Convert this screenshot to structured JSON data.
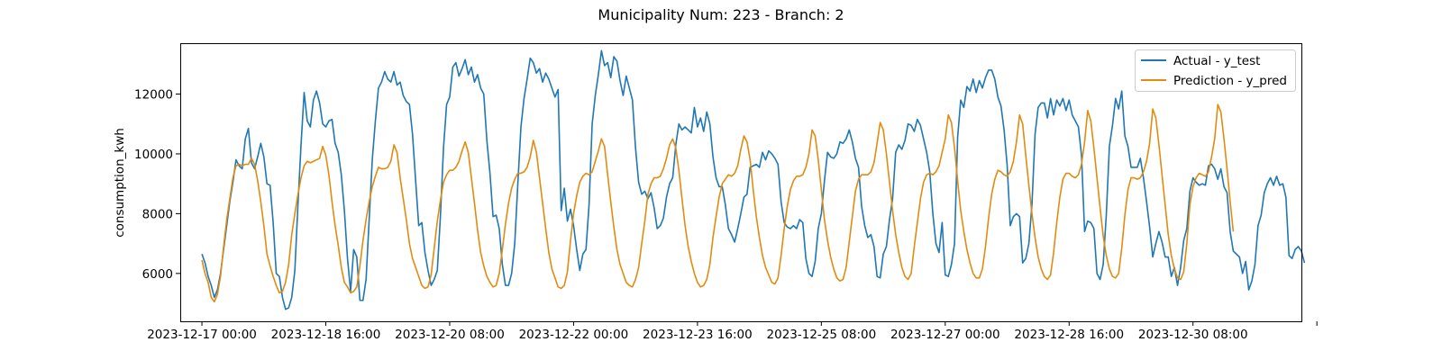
{
  "chart_data": {
    "type": "line",
    "title": "Municipality Num: 223 - Branch: 2",
    "xlabel": "",
    "ylabel": "consumption_kwh",
    "x_start": "2023-12-17 00:00",
    "x_step_hours": 1,
    "x_range_hours": [
      -7,
      355
    ],
    "x_ticks": [
      "2023-12-17 00:00",
      "2023-12-18 16:00",
      "2023-12-20 08:00",
      "2023-12-22 00:00",
      "2023-12-23 16:00",
      "2023-12-25 08:00",
      "2023-12-27 00:00",
      "2023-12-28 16:00",
      "2023-12-30 08:00",
      ""
    ],
    "ylim": [
      4400,
      13700
    ],
    "y_ticks": [
      6000,
      8000,
      10000,
      12000
    ],
    "grid": false,
    "legend_position": "top-right",
    "series": [
      {
        "name": "Actual - y_test",
        "color": "#1f77b4",
        "values": [
          6650,
          6350,
          5900,
          5600,
          5200,
          5450,
          6000,
          6800,
          7600,
          8400,
          9050,
          9800,
          9600,
          9500,
          10500,
          10850,
          9700,
          9500,
          9900,
          10350,
          9900,
          9000,
          8950,
          7700,
          6000,
          5900,
          5200,
          4800,
          4850,
          5200,
          6100,
          8300,
          10300,
          12050,
          11100,
          10900,
          11800,
          12100,
          11700,
          11000,
          10900,
          11100,
          11150,
          10350,
          10050,
          9300,
          8100,
          6500,
          5400,
          6800,
          6550,
          5100,
          5100,
          5800,
          7800,
          9800,
          11100,
          12200,
          12400,
          12750,
          12500,
          12400,
          12750,
          12300,
          12400,
          11950,
          11750,
          11650,
          10650,
          9100,
          7600,
          7700,
          6700,
          6100,
          5600,
          5800,
          6100,
          7900,
          10200,
          11650,
          11900,
          12900,
          13050,
          12600,
          12850,
          13150,
          12650,
          12900,
          12400,
          12650,
          12200,
          12000,
          10450,
          9350,
          7900,
          7950,
          7500,
          6300,
          5600,
          5600,
          6000,
          7000,
          9000,
          10900,
          11850,
          12500,
          13200,
          13050,
          12700,
          12850,
          12400,
          12700,
          12500,
          12200,
          11900,
          12150,
          8100,
          8850,
          7750,
          8150,
          7600,
          6800,
          6100,
          6650,
          6800,
          8300,
          11000,
          11950,
          12650,
          13450,
          12950,
          13050,
          12550,
          13250,
          13100,
          12450,
          11950,
          12600,
          12200,
          11800,
          10200,
          9050,
          8650,
          8750,
          8500,
          8700,
          8200,
          7500,
          7600,
          7850,
          8550,
          9000,
          9200,
          10300,
          11000,
          10800,
          10900,
          10800,
          10700,
          11550,
          10900,
          11200,
          10750,
          11400,
          11000,
          9900,
          9200,
          8900,
          8900,
          8300,
          7500,
          7300,
          7050,
          7500,
          8000,
          8550,
          8650,
          9550,
          9600,
          9650,
          9550,
          10050,
          9800,
          10100,
          10000,
          9850,
          9650,
          8400,
          7700,
          7550,
          7500,
          7600,
          7500,
          7800,
          7700,
          6500,
          6000,
          5900,
          6400,
          7500,
          8000,
          9100,
          10050,
          9900,
          9850,
          10000,
          10400,
          10350,
          10500,
          10800,
          10400,
          9850,
          9550,
          8250,
          7600,
          7200,
          7300,
          6900,
          5900,
          5850,
          6650,
          6900,
          7800,
          8500,
          10050,
          10300,
          10150,
          10450,
          11000,
          10950,
          10750,
          11150,
          10950,
          10500,
          10050,
          9400,
          8000,
          7000,
          6700,
          7700,
          5950,
          5900,
          6300,
          7000,
          10550,
          11800,
          11550,
          12250,
          12100,
          12500,
          12050,
          12450,
          12200,
          12550,
          12800,
          12800,
          12500,
          11900,
          11600,
          10800,
          9600,
          7600,
          7900,
          8000,
          7900,
          6350,
          6500,
          7000,
          8300,
          10650,
          11550,
          11700,
          11700,
          11200,
          11850,
          11300,
          11800,
          11600,
          11850,
          11450,
          11800,
          11300,
          11100,
          10900,
          9950,
          7400,
          7750,
          7700,
          7500,
          6000,
          5800,
          6300,
          7950,
          10250,
          10950,
          11850,
          11500,
          12100,
          10600,
          10250,
          9550,
          9550,
          9550,
          9850,
          9200,
          8400,
          7550,
          6550,
          7000,
          7400,
          7050,
          6550,
          6550,
          5900,
          6200,
          5600,
          6200,
          7100,
          7500,
          8750,
          9200,
          9050,
          8950,
          9000,
          8950,
          9600,
          9650,
          9500,
          9150,
          9500,
          8900,
          8700,
          7400,
          6750,
          6650,
          6550,
          6000,
          6400,
          5450,
          5750,
          6300,
          7600,
          7950,
          8700,
          9000,
          9200,
          8950,
          9250,
          8950,
          9000,
          8550,
          6600,
          6500,
          6800,
          6900,
          6750,
          6350
        ]
      },
      {
        "name": "Prediction - y_pred",
        "color": "#e08c10",
        "values": [
          6450,
          6000,
          5700,
          5200,
          5050,
          5300,
          5900,
          6900,
          7800,
          8500,
          9200,
          9600,
          9650,
          9600,
          9650,
          9650,
          9850,
          9650,
          9100,
          8400,
          7600,
          6650,
          6250,
          5900,
          5600,
          5350,
          5400,
          5700,
          6300,
          7300,
          8000,
          8650,
          9200,
          9600,
          9750,
          9700,
          9750,
          9800,
          9850,
          10250,
          9950,
          9300,
          8400,
          7600,
          6950,
          6200,
          5700,
          5550,
          5350,
          5400,
          5550,
          6250,
          7100,
          7800,
          8400,
          8900,
          9250,
          9550,
          9500,
          9500,
          9550,
          9750,
          10300,
          10050,
          9200,
          8500,
          7800,
          7000,
          6500,
          6200,
          5900,
          5600,
          5500,
          5550,
          5950,
          6850,
          7750,
          8450,
          9050,
          9300,
          9450,
          9450,
          9550,
          9750,
          10100,
          10400,
          10050,
          9200,
          8350,
          7450,
          6700,
          6250,
          5900,
          5700,
          5550,
          5600,
          6000,
          6800,
          7650,
          8350,
          8850,
          9150,
          9350,
          9350,
          9400,
          9550,
          9900,
          10450,
          10050,
          9200,
          8350,
          7500,
          6700,
          6150,
          5850,
          5550,
          5500,
          5600,
          6050,
          7100,
          8000,
          8600,
          9050,
          9250,
          9350,
          9300,
          9400,
          9750,
          10100,
          10500,
          10250,
          9300,
          8400,
          7550,
          6800,
          6300,
          6000,
          5700,
          5600,
          5550,
          5800,
          6200,
          7000,
          7750,
          8650,
          9000,
          9200,
          9200,
          9250,
          9500,
          9850,
          10300,
          10500,
          10200,
          9450,
          8500,
          7600,
          6900,
          6400,
          6000,
          5700,
          5550,
          5600,
          5800,
          6300,
          7200,
          7900,
          8550,
          9000,
          9150,
          9300,
          9250,
          9350,
          9600,
          10150,
          10600,
          10400,
          9800,
          8800,
          7900,
          7200,
          6600,
          6200,
          5950,
          5700,
          5650,
          5850,
          6600,
          7500,
          8250,
          8800,
          9100,
          9250,
          9250,
          9300,
          9550,
          10000,
          10800,
          10600,
          9800,
          8800,
          7800,
          7100,
          6550,
          6150,
          5850,
          5750,
          5800,
          6200,
          7050,
          7900,
          8750,
          9150,
          9300,
          9300,
          9300,
          9400,
          9700,
          10350,
          11050,
          10800,
          10000,
          9050,
          8100,
          7300,
          6700,
          6200,
          5900,
          5800,
          6000,
          6900,
          7700,
          8500,
          9050,
          9300,
          9350,
          9300,
          9400,
          9600,
          10050,
          10500,
          11300,
          11050,
          10200,
          9100,
          8100,
          7400,
          6800,
          6350,
          6000,
          5850,
          5850,
          6150,
          6900,
          7850,
          8650,
          9150,
          9450,
          9400,
          9300,
          9250,
          9400,
          9750,
          10400,
          11300,
          11000,
          9950,
          8950,
          8000,
          7200,
          6550,
          6150,
          5900,
          5800,
          5950,
          6700,
          7700,
          8550,
          9150,
          9350,
          9350,
          9250,
          9200,
          9300,
          9650,
          10400,
          11450,
          11100,
          10200,
          9200,
          8200,
          7250,
          6600,
          6150,
          5900,
          5850,
          6000,
          6850,
          7950,
          8800,
          9200,
          9200,
          9150,
          9200,
          9400,
          9750,
          10350,
          11500,
          11200,
          10300,
          9300,
          8300,
          7300,
          6600,
          6150,
          5850,
          5800,
          6050,
          7000,
          8300,
          8900,
          9200,
          9350,
          9300,
          9250,
          9400,
          9900,
          10500,
          11650,
          11400,
          10500,
          9500,
          8400,
          7400
        ]
      }
    ]
  }
}
